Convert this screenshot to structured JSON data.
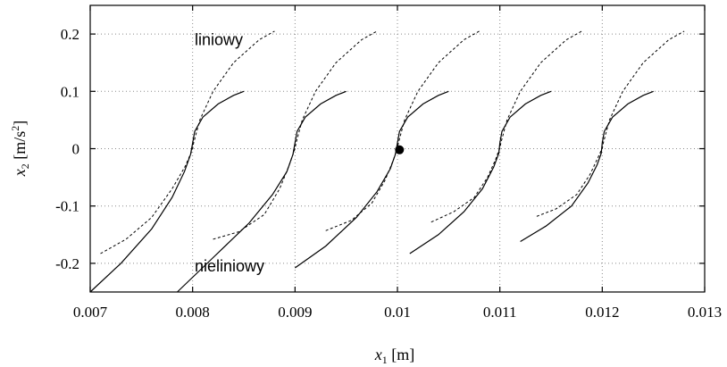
{
  "chart_data": {
    "type": "line",
    "xlabel": {
      "var": "x",
      "sub": "1",
      "unit": " [m]"
    },
    "ylabel": {
      "var": "x",
      "sub": "2",
      "unit_pre": " [m/s",
      "unit_sup": "2",
      "unit_post": "]"
    },
    "xlim": [
      0.007,
      0.013
    ],
    "ylim": [
      -0.25,
      0.25
    ],
    "x_ticks": [
      0.007,
      0.008,
      0.009,
      0.01,
      0.011,
      0.012,
      0.013
    ],
    "x_tick_labels": [
      "0.007",
      "0.008",
      "0.009",
      "0.01",
      "0.011",
      "0.012",
      "0.013"
    ],
    "y_ticks": [
      -0.2,
      -0.1,
      0,
      0.1,
      0.2
    ],
    "y_tick_labels": [
      "-0.2",
      "-0.1",
      "0",
      "0.1",
      "0.2"
    ],
    "grid": true,
    "annotations": [
      {
        "text": "liniowy",
        "x": 0.00802,
        "y": 0.19
      },
      {
        "text": "nieliniowy",
        "x": 0.00802,
        "y": -0.205
      }
    ],
    "marker": {
      "x": 0.01002,
      "y": -0.002
    },
    "series": [
      {
        "key": "liniowy",
        "style": "dashed",
        "segments": [
          {
            "x": [
              0.0071,
              0.00735,
              0.0076,
              0.0078,
              0.00793,
              0.00799,
              0.008,
              0.00801,
              0.00807,
              0.0082,
              0.0084,
              0.00865,
              0.0088
            ],
            "y": [
              -0.183,
              -0.158,
              -0.12,
              -0.07,
              -0.03,
              -0.005,
              0.0,
              0.01,
              0.05,
              0.1,
              0.15,
              0.19,
              0.205
            ]
          },
          {
            "x": [
              0.0082,
              0.00845,
              0.0087,
              0.00885,
              0.00894,
              0.00899,
              0.009,
              0.00901,
              0.00907,
              0.0092,
              0.0094,
              0.00965,
              0.0098
            ],
            "y": [
              -0.158,
              -0.145,
              -0.115,
              -0.07,
              -0.03,
              -0.005,
              0.0,
              0.01,
              0.05,
              0.1,
              0.15,
              0.19,
              0.205
            ]
          },
          {
            "x": [
              0.0093,
              0.00955,
              0.00975,
              0.00988,
              0.00996,
              0.00999,
              0.01,
              0.01001,
              0.01007,
              0.0102,
              0.0104,
              0.01065,
              0.0108
            ],
            "y": [
              -0.143,
              -0.125,
              -0.095,
              -0.055,
              -0.02,
              -0.003,
              0.0,
              0.01,
              0.05,
              0.1,
              0.15,
              0.19,
              0.205
            ]
          },
          {
            "x": [
              0.01033,
              0.01055,
              0.01075,
              0.01088,
              0.01096,
              0.01099,
              0.011,
              0.01101,
              0.01107,
              0.0112,
              0.0114,
              0.01165,
              0.0118
            ],
            "y": [
              -0.128,
              -0.11,
              -0.085,
              -0.05,
              -0.018,
              -0.003,
              0.0,
              0.01,
              0.05,
              0.1,
              0.15,
              0.19,
              0.205
            ]
          },
          {
            "x": [
              0.01136,
              0.01155,
              0.01175,
              0.01188,
              0.01196,
              0.01199,
              0.012,
              0.01201,
              0.01207,
              0.0122,
              0.0124,
              0.01265,
              0.0128
            ],
            "y": [
              -0.118,
              -0.105,
              -0.08,
              -0.045,
              -0.015,
              -0.003,
              0.0,
              0.01,
              0.05,
              0.1,
              0.15,
              0.19,
              0.205
            ]
          }
        ]
      },
      {
        "key": "nieliniowy",
        "style": "solid",
        "segments": [
          {
            "x": [
              0.007,
              0.0073,
              0.0076,
              0.0078,
              0.00792,
              0.00798,
              0.008,
              0.00802,
              0.0081,
              0.00825,
              0.0084,
              0.0085
            ],
            "y": [
              -0.25,
              -0.2,
              -0.14,
              -0.085,
              -0.04,
              -0.01,
              0.01,
              0.03,
              0.055,
              0.078,
              0.093,
              0.1
            ]
          },
          {
            "x": [
              0.00785,
              0.0082,
              0.00855,
              0.00878,
              0.00892,
              0.00898,
              0.009,
              0.00902,
              0.0091,
              0.00925,
              0.0094,
              0.0095
            ],
            "y": [
              -0.25,
              -0.19,
              -0.13,
              -0.08,
              -0.04,
              -0.01,
              0.01,
              0.03,
              0.055,
              0.078,
              0.093,
              0.1
            ]
          },
          {
            "x": [
              0.009,
              0.0093,
              0.0096,
              0.0098,
              0.00993,
              0.00998,
              0.01,
              0.01002,
              0.0101,
              0.01025,
              0.0104,
              0.0105
            ],
            "y": [
              -0.208,
              -0.17,
              -0.12,
              -0.075,
              -0.035,
              -0.01,
              0.01,
              0.03,
              0.055,
              0.078,
              0.093,
              0.1
            ]
          },
          {
            "x": [
              0.01012,
              0.0104,
              0.01065,
              0.01083,
              0.01094,
              0.01099,
              0.011,
              0.01102,
              0.0111,
              0.01125,
              0.0114,
              0.0115
            ],
            "y": [
              -0.183,
              -0.15,
              -0.11,
              -0.07,
              -0.032,
              -0.008,
              0.01,
              0.03,
              0.055,
              0.078,
              0.093,
              0.1
            ]
          },
          {
            "x": [
              0.0112,
              0.01145,
              0.0117,
              0.01186,
              0.01195,
              0.01199,
              0.012,
              0.01202,
              0.0121,
              0.01225,
              0.0124,
              0.0125
            ],
            "y": [
              -0.162,
              -0.135,
              -0.1,
              -0.06,
              -0.028,
              -0.008,
              0.01,
              0.03,
              0.055,
              0.078,
              0.093,
              0.1
            ]
          }
        ]
      }
    ]
  }
}
